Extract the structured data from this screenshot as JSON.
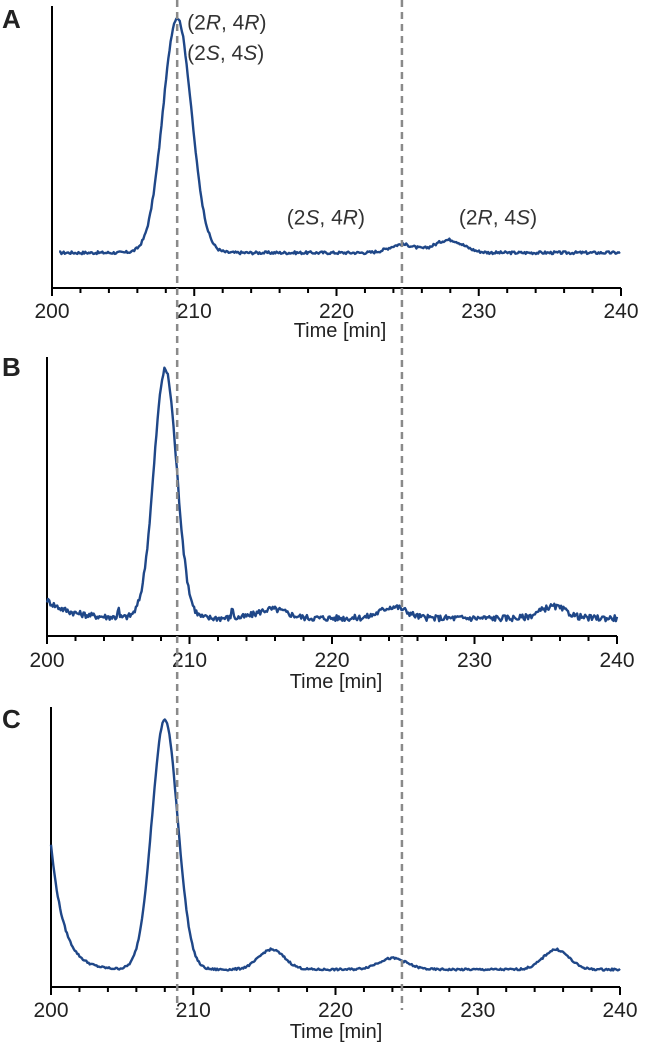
{
  "chart_data": [
    {
      "type": "line",
      "panel_label": "A",
      "xlabel": "Time [min]",
      "xlim": [
        200,
        240
      ],
      "xticks": [
        200,
        210,
        220,
        230,
        240
      ],
      "y_axis_ticks": false,
      "baseline": 0.0,
      "noise": 0.006,
      "x_start": 200.5,
      "left_tail": null,
      "peaks": [
        {
          "center": 208.8,
          "height": 1.0,
          "sigma": 1.0
        },
        {
          "center": 224.6,
          "height": 0.035,
          "sigma": 0.9
        },
        {
          "center": 227.9,
          "height": 0.055,
          "sigma": 1.0
        }
      ],
      "ylim": [
        -0.15,
        1.05
      ],
      "annotations": [
        {
          "lines": [
            [
              "(2",
              "R",
              ", 4",
              "R",
              ")"
            ],
            [
              "(2",
              "S",
              ", 4",
              "S",
              ")"
            ]
          ],
          "x": 209.5,
          "y_lines": [
            0.95,
            0.82
          ]
        },
        {
          "lines": [
            [
              "(2",
              "S",
              ", 4",
              "R",
              ")"
            ]
          ],
          "x": 216.5,
          "y_lines": [
            0.12
          ]
        },
        {
          "lines": [
            [
              "(2",
              "R",
              ", 4",
              "S",
              ")"
            ]
          ],
          "x": 228.6,
          "y_lines": [
            0.12
          ]
        }
      ]
    },
    {
      "type": "line",
      "panel_label": "B",
      "xlabel": "Time [min]",
      "xlim": [
        200,
        240
      ],
      "xticks": [
        200,
        210,
        220,
        230,
        240
      ],
      "y_axis_ticks": false,
      "baseline": 0.03,
      "noise": 0.012,
      "x_start": 200.0,
      "left_tail": {
        "height": 0.07,
        "decay": 1.6
      },
      "spikes": [
        {
          "x": 205.0,
          "height": 0.03
        },
        {
          "x": 213.0,
          "height": 0.04
        }
      ],
      "peaks": [
        {
          "center": 208.3,
          "height": 0.97,
          "sigma": 0.8
        },
        {
          "center": 215.8,
          "height": 0.035,
          "sigma": 1.0
        },
        {
          "center": 224.3,
          "height": 0.045,
          "sigma": 0.9
        },
        {
          "center": 235.5,
          "height": 0.045,
          "sigma": 0.9
        }
      ],
      "ylim": [
        -0.04,
        1.05
      ]
    },
    {
      "type": "line",
      "panel_label": "C",
      "xlabel": "Time [min]",
      "xlim": [
        200,
        240
      ],
      "xticks": [
        200,
        210,
        220,
        230,
        240
      ],
      "y_axis_ticks": false,
      "baseline": 0.0,
      "noise": 0.004,
      "x_start": 200.0,
      "left_tail": {
        "height": 0.5,
        "decay": 0.9
      },
      "peaks": [
        {
          "center": 208.0,
          "height": 1.0,
          "sigma": 0.9
        },
        {
          "center": 215.5,
          "height": 0.08,
          "sigma": 0.9
        },
        {
          "center": 224.0,
          "height": 0.045,
          "sigma": 1.0
        },
        {
          "center": 235.5,
          "height": 0.08,
          "sigma": 0.9
        }
      ],
      "ylim": [
        -0.07,
        1.05
      ]
    }
  ],
  "reference_lines": [
    {
      "x": 208.8,
      "dash": true
    },
    {
      "x": 224.6,
      "dash": true
    }
  ],
  "colors": {
    "trace": "#1f4788",
    "reference": "#8a8a8a",
    "axis": "#000000"
  }
}
